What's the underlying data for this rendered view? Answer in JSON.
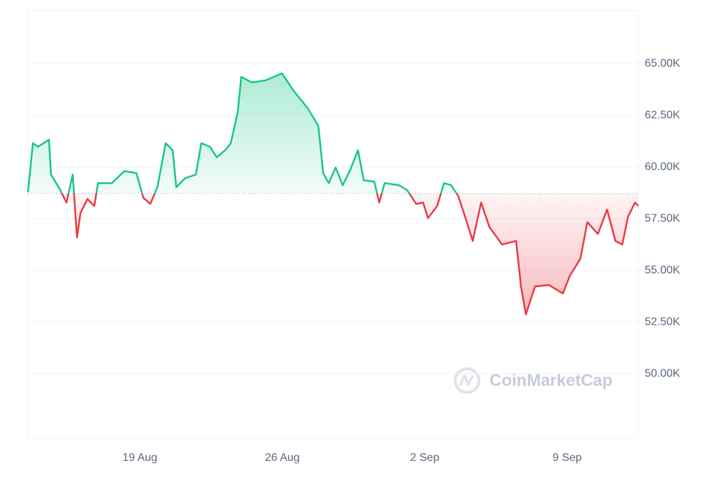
{
  "chart_data": {
    "type": "line",
    "watermark": "CoinMarketCap",
    "up_color": "#16c784",
    "down_color": "#ea3943",
    "baseline": 58720,
    "grid": true,
    "xlim": [
      0.5,
      30.5
    ],
    "xticks": [
      {
        "value": 6,
        "label": "19 Aug"
      },
      {
        "value": 13,
        "label": "26 Aug"
      },
      {
        "value": 20,
        "label": "2 Sep"
      },
      {
        "value": 27,
        "label": "9 Sep"
      }
    ],
    "ylim": [
      46860,
      67570
    ],
    "yticks": [
      {
        "value": 50000,
        "label": "50.00K"
      },
      {
        "value": 52500,
        "label": "52.50K"
      },
      {
        "value": 55000,
        "label": "55.00K"
      },
      {
        "value": 57500,
        "label": "57.50K"
      },
      {
        "value": 60000,
        "label": "60.00K"
      },
      {
        "value": 62500,
        "label": "62.50K"
      },
      {
        "value": 65000,
        "label": "65.00K"
      }
    ],
    "x": [
      0.5,
      0.74,
      1.0,
      1.53,
      1.63,
      2.05,
      2.39,
      2.7,
      2.91,
      3.08,
      3.42,
      3.76,
      3.94,
      4.62,
      5.24,
      5.83,
      6.17,
      6.51,
      6.86,
      7.27,
      7.61,
      7.79,
      8.23,
      8.75,
      9.02,
      9.44,
      9.78,
      10.19,
      10.47,
      10.81,
      10.98,
      11.5,
      12.19,
      12.98,
      13.56,
      14.25,
      14.77,
      15.01,
      15.28,
      15.62,
      15.97,
      16.31,
      16.72,
      17.0,
      17.52,
      17.76,
      18.03,
      18.72,
      19.13,
      19.58,
      19.92,
      20.16,
      20.61,
      20.95,
      21.29,
      21.64,
      21.98,
      22.36,
      22.77,
      23.18,
      23.8,
      24.49,
      24.73,
      24.97,
      25.42,
      26.1,
      26.79,
      27.13,
      27.65,
      27.99,
      28.51,
      28.96,
      29.37,
      29.71,
      29.99,
      30.33,
      30.5
    ],
    "values": [
      58780,
      61150,
      60980,
      61320,
      59630,
      58950,
      58280,
      59630,
      56590,
      57770,
      58450,
      58110,
      59220,
      59220,
      59800,
      59700,
      58510,
      58210,
      59020,
      61150,
      60810,
      59020,
      59460,
      59630,
      61150,
      60980,
      60470,
      60810,
      61150,
      62670,
      64360,
      64090,
      64190,
      64530,
      63680,
      62840,
      61990,
      59700,
      59220,
      59970,
      59120,
      59800,
      60810,
      59360,
      59290,
      58280,
      59220,
      59120,
      58890,
      58210,
      58280,
      57530,
      58110,
      59220,
      59120,
      58610,
      57600,
      56420,
      58280,
      57090,
      56250,
      56420,
      54220,
      52870,
      54220,
      54290,
      53880,
      54730,
      55570,
      57330,
      56760,
      57940,
      56420,
      56250,
      57600,
      58280,
      58110
    ]
  }
}
